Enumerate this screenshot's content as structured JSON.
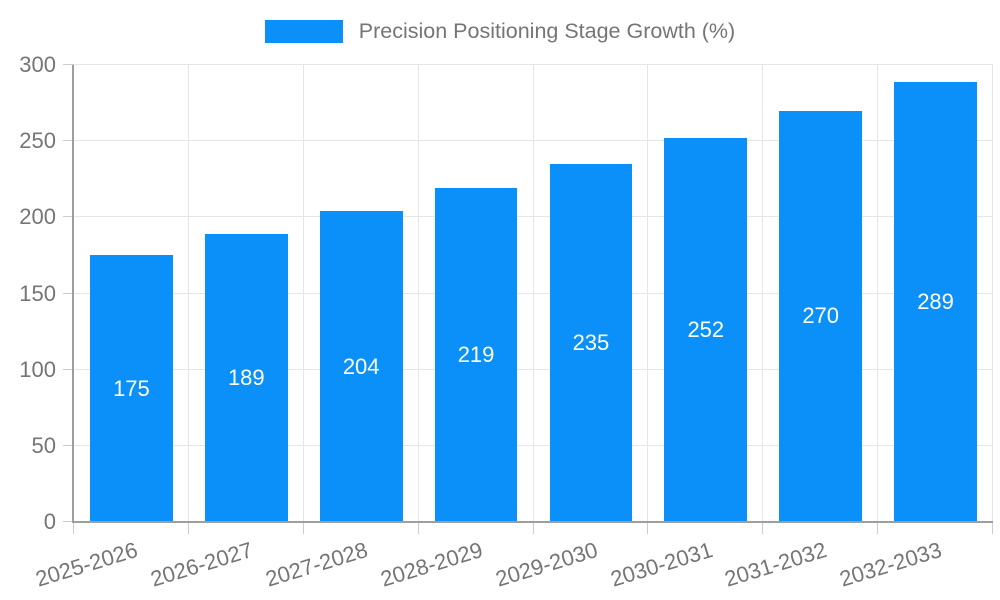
{
  "chart_data": {
    "type": "bar",
    "title": "",
    "legend": {
      "label": "Precision Positioning Stage Growth (%)",
      "position": "top-center"
    },
    "categories": [
      "2025-2026",
      "2026-2027",
      "2027-2028",
      "2028-2029",
      "2029-2030",
      "2030-2031",
      "2031-2032",
      "2032-2033"
    ],
    "values": [
      175,
      189,
      204,
      219,
      235,
      252,
      270,
      289
    ],
    "xlabel": "",
    "ylabel": "",
    "ylim": [
      0,
      300
    ],
    "yticks": [
      0,
      50,
      100,
      150,
      200,
      250,
      300
    ],
    "grid": true,
    "value_labels": "inside-center",
    "colors": {
      "bar": "#0a90f8",
      "grid_line": "#e6e6e6",
      "axis_line": "#9e9e9e",
      "tick_mark": "#cccccc",
      "tick_text": "#757575",
      "value_text": "#ffffff",
      "background": "#ffffff"
    }
  }
}
